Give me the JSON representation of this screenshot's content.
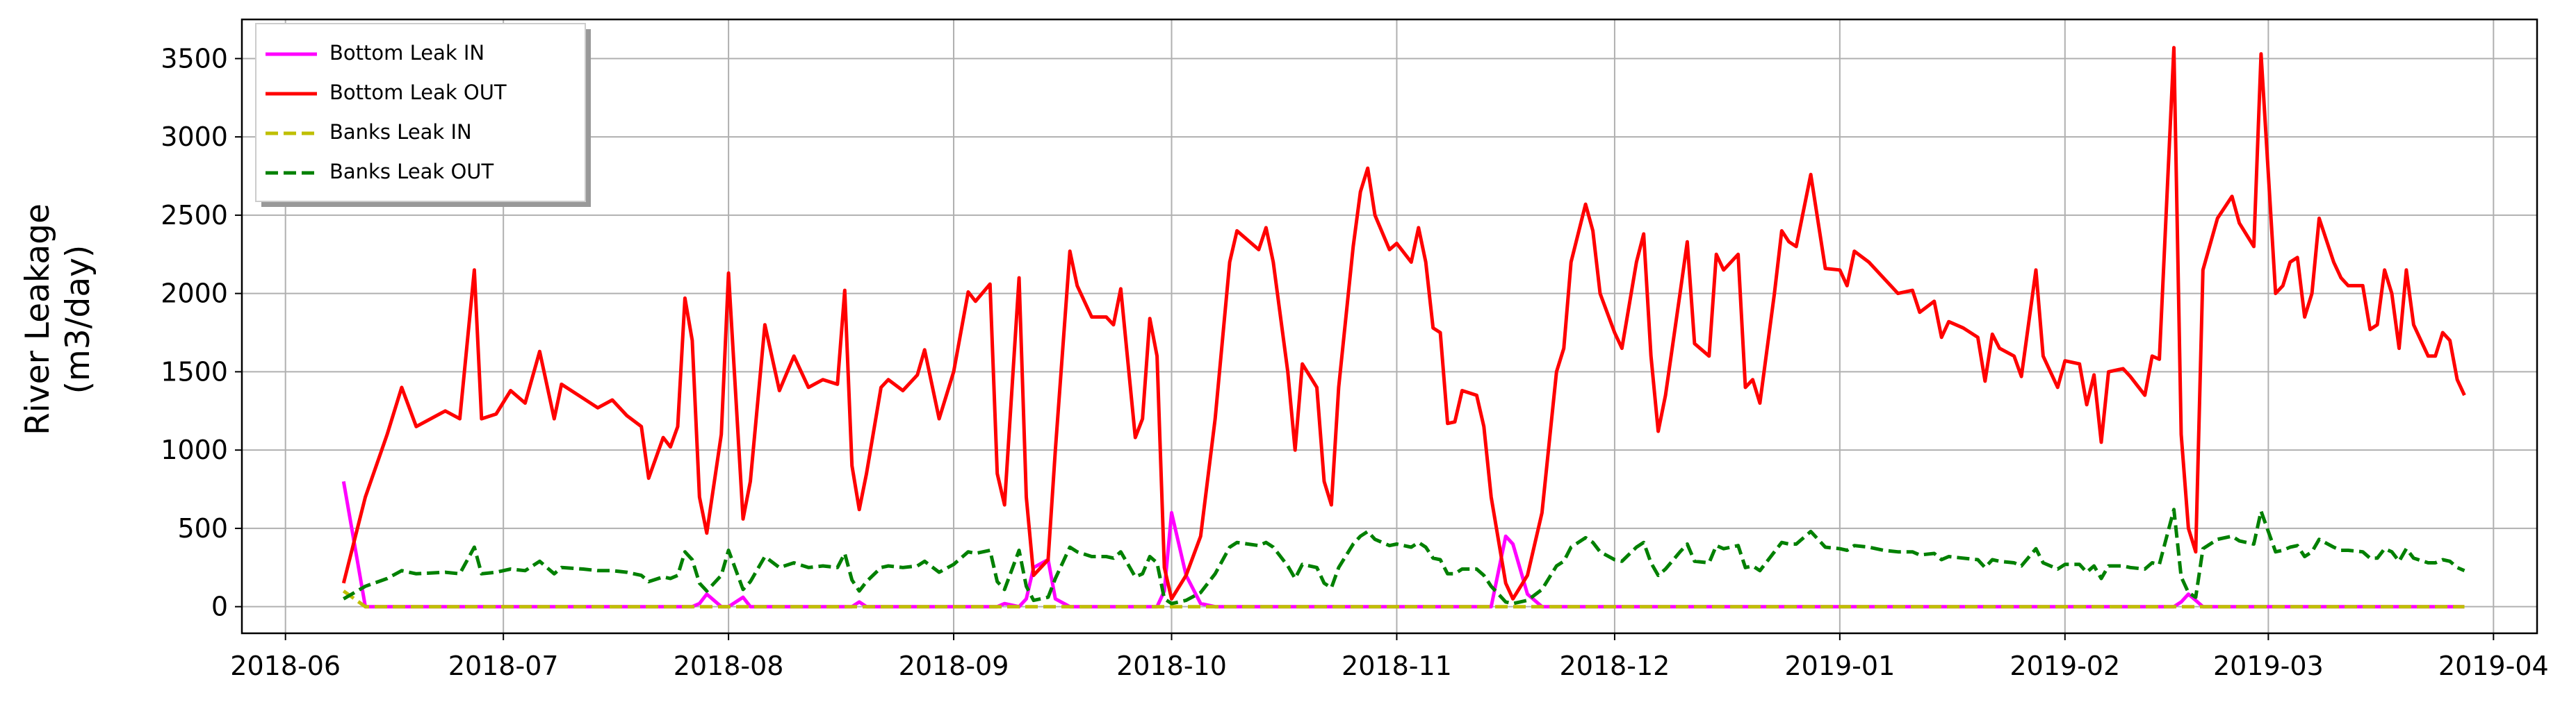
{
  "chart_data": {
    "type": "line",
    "ylabel": [
      "River Leakage",
      "(m3/day)"
    ],
    "x": [
      "2018-06-09",
      "2018-06-12",
      "2018-06-15",
      "2018-06-17",
      "2018-06-19",
      "2018-06-23",
      "2018-06-25",
      "2018-06-27",
      "2018-06-28",
      "2018-06-30",
      "2018-07-02",
      "2018-07-04",
      "2018-07-06",
      "2018-07-08",
      "2018-07-09",
      "2018-07-12",
      "2018-07-14",
      "2018-07-16",
      "2018-07-18",
      "2018-07-20",
      "2018-07-21",
      "2018-07-23",
      "2018-07-24",
      "2018-07-25",
      "2018-07-26",
      "2018-07-27",
      "2018-07-28",
      "2018-07-29",
      "2018-07-31",
      "2018-08-01",
      "2018-08-03",
      "2018-08-04",
      "2018-08-06",
      "2018-08-08",
      "2018-08-10",
      "2018-08-12",
      "2018-08-14",
      "2018-08-16",
      "2018-08-17",
      "2018-08-18",
      "2018-08-19",
      "2018-08-20",
      "2018-08-22",
      "2018-08-23",
      "2018-08-25",
      "2018-08-27",
      "2018-08-28",
      "2018-08-30",
      "2018-09-01",
      "2018-09-03",
      "2018-09-04",
      "2018-09-06",
      "2018-09-07",
      "2018-09-08",
      "2018-09-10",
      "2018-09-11",
      "2018-09-12",
      "2018-09-14",
      "2018-09-15",
      "2018-09-17",
      "2018-09-18",
      "2018-09-20",
      "2018-09-22",
      "2018-09-23",
      "2018-09-24",
      "2018-09-26",
      "2018-09-27",
      "2018-09-28",
      "2018-09-29",
      "2018-09-30",
      "2018-10-01",
      "2018-10-03",
      "2018-10-05",
      "2018-10-07",
      "2018-10-09",
      "2018-10-10",
      "2018-10-13",
      "2018-10-14",
      "2018-10-15",
      "2018-10-17",
      "2018-10-18",
      "2018-10-19",
      "2018-10-21",
      "2018-10-22",
      "2018-10-23",
      "2018-10-24",
      "2018-10-26",
      "2018-10-27",
      "2018-10-28",
      "2018-10-29",
      "2018-10-31",
      "2018-11-01",
      "2018-11-03",
      "2018-11-04",
      "2018-11-05",
      "2018-11-06",
      "2018-11-07",
      "2018-11-08",
      "2018-11-09",
      "2018-11-10",
      "2018-11-12",
      "2018-11-13",
      "2018-11-14",
      "2018-11-16",
      "2018-11-17",
      "2018-11-19",
      "2018-11-21",
      "2018-11-23",
      "2018-11-24",
      "2018-11-25",
      "2018-11-27",
      "2018-11-28",
      "2018-11-29",
      "2018-12-01",
      "2018-12-02",
      "2018-12-04",
      "2018-12-05",
      "2018-12-06",
      "2018-12-07",
      "2018-12-08",
      "2018-12-10",
      "2018-12-11",
      "2018-12-12",
      "2018-12-14",
      "2018-12-15",
      "2018-12-16",
      "2018-12-18",
      "2018-12-19",
      "2018-12-20",
      "2018-12-21",
      "2018-12-23",
      "2018-12-24",
      "2018-12-25",
      "2018-12-26",
      "2018-12-28",
      "2018-12-30",
      "2019-01-01",
      "2019-01-02",
      "2019-01-03",
      "2019-01-05",
      "2019-01-07",
      "2019-01-09",
      "2019-01-11",
      "2019-01-12",
      "2019-01-14",
      "2019-01-15",
      "2019-01-16",
      "2019-01-18",
      "2019-01-20",
      "2019-01-21",
      "2019-01-22",
      "2019-01-23",
      "2019-01-25",
      "2019-01-26",
      "2019-01-28",
      "2019-01-29",
      "2019-01-31",
      "2019-02-01",
      "2019-02-03",
      "2019-02-04",
      "2019-02-05",
      "2019-02-06",
      "2019-02-07",
      "2019-02-09",
      "2019-02-10",
      "2019-02-12",
      "2019-02-13",
      "2019-02-14",
      "2019-02-16",
      "2019-02-17",
      "2019-02-18",
      "2019-02-19",
      "2019-02-20",
      "2019-02-22",
      "2019-02-24",
      "2019-02-25",
      "2019-02-27",
      "2019-02-28",
      "2019-03-02",
      "2019-03-03",
      "2019-03-04",
      "2019-03-05",
      "2019-03-06",
      "2019-03-07",
      "2019-03-08",
      "2019-03-10",
      "2019-03-11",
      "2019-03-12",
      "2019-03-14",
      "2019-03-15",
      "2019-03-16",
      "2019-03-17",
      "2019-03-18",
      "2019-03-19",
      "2019-03-20",
      "2019-03-21",
      "2019-03-23",
      "2019-03-24",
      "2019-03-25",
      "2019-03-26",
      "2019-03-27",
      "2019-03-28"
    ],
    "series": [
      {
        "name": "Bottom Leak IN",
        "color": "#ff00ff",
        "linestyle": "solid",
        "values": [
          800,
          0,
          0,
          0,
          0,
          0,
          0,
          0,
          0,
          0,
          0,
          0,
          0,
          0,
          0,
          0,
          0,
          0,
          0,
          0,
          0,
          0,
          0,
          0,
          0,
          0,
          20,
          80,
          0,
          0,
          60,
          0,
          0,
          0,
          0,
          0,
          0,
          0,
          0,
          0,
          30,
          0,
          0,
          0,
          0,
          0,
          0,
          0,
          0,
          0,
          0,
          0,
          0,
          20,
          0,
          50,
          250,
          300,
          50,
          0,
          0,
          0,
          0,
          0,
          0,
          0,
          0,
          0,
          0,
          100,
          600,
          200,
          20,
          0,
          0,
          0,
          0,
          0,
          0,
          0,
          0,
          0,
          0,
          0,
          0,
          0,
          0,
          0,
          0,
          0,
          0,
          0,
          0,
          0,
          0,
          0,
          0,
          0,
          0,
          0,
          0,
          0,
          0,
          450,
          400,
          80,
          0,
          0,
          0,
          0,
          0,
          0,
          0,
          0,
          0,
          0,
          0,
          0,
          0,
          0,
          0,
          0,
          0,
          0,
          0,
          0,
          0,
          0,
          0,
          0,
          0,
          0,
          0,
          0,
          0,
          0,
          0,
          0,
          0,
          0,
          0,
          0,
          0,
          0,
          0,
          0,
          0,
          0,
          0,
          0,
          0,
          0,
          0,
          0,
          0,
          0,
          0,
          0,
          0,
          0,
          0,
          0,
          0,
          0,
          0,
          0,
          0,
          0,
          0,
          30,
          80,
          40,
          0,
          0,
          0,
          0,
          0,
          0,
          0,
          0,
          0,
          0,
          0,
          0,
          0,
          0,
          0,
          0,
          0,
          0,
          0,
          0,
          0,
          0,
          0,
          0,
          0,
          0,
          0,
          0,
          0,
          0
        ]
      },
      {
        "name": "Bottom Leak OUT",
        "color": "#ff0000",
        "linestyle": "solid",
        "values": [
          150,
          700,
          1100,
          1400,
          1150,
          1250,
          1200,
          2150,
          1200,
          1230,
          1380,
          1300,
          1630,
          1200,
          1420,
          1330,
          1270,
          1320,
          1220,
          1150,
          820,
          1080,
          1020,
          1150,
          1970,
          1700,
          700,
          470,
          1100,
          2130,
          560,
          800,
          1800,
          1380,
          1600,
          1400,
          1450,
          1420,
          2020,
          900,
          620,
          850,
          1400,
          1450,
          1380,
          1480,
          1640,
          1200,
          1500,
          2010,
          1950,
          2060,
          850,
          650,
          2100,
          700,
          200,
          300,
          1000,
          2270,
          2050,
          1850,
          1850,
          1800,
          2030,
          1080,
          1200,
          1840,
          1600,
          250,
          50,
          200,
          450,
          1200,
          2200,
          2400,
          2280,
          2420,
          2200,
          1500,
          1000,
          1550,
          1400,
          800,
          650,
          1400,
          2300,
          2650,
          2800,
          2500,
          2280,
          2320,
          2200,
          2420,
          2200,
          1780,
          1750,
          1170,
          1180,
          1380,
          1350,
          1150,
          700,
          150,
          50,
          200,
          600,
          1500,
          1650,
          2200,
          2570,
          2400,
          2000,
          1750,
          1650,
          2200,
          2380,
          1600,
          1120,
          1350,
          2000,
          2330,
          1680,
          1600,
          2250,
          2150,
          2250,
          1400,
          1450,
          1300,
          2000,
          2400,
          2330,
          2300,
          2760,
          2160,
          2150,
          2050,
          2270,
          2200,
          2100,
          2000,
          2020,
          1880,
          1950,
          1720,
          1820,
          1780,
          1720,
          1440,
          1740,
          1650,
          1600,
          1470,
          2150,
          1600,
          1400,
          1570,
          1550,
          1290,
          1480,
          1050,
          1500,
          1520,
          1470,
          1350,
          1600,
          1580,
          3570,
          1100,
          500,
          350,
          2150,
          2480,
          2620,
          2450,
          2300,
          3530,
          2000,
          2050,
          2200,
          2230,
          1850,
          2000,
          2480,
          2200,
          2100,
          2050,
          2050,
          1770,
          1800,
          2150,
          2000,
          1650,
          2150,
          1800,
          1600,
          1600,
          1750,
          1700,
          1450,
          1350
        ]
      },
      {
        "name": "Banks Leak IN",
        "color": "#bfbf00",
        "linestyle": "dashed",
        "values": [
          100,
          0,
          0,
          0,
          0,
          0,
          0,
          0,
          0,
          0,
          0,
          0,
          0,
          0,
          0,
          0,
          0,
          0,
          0,
          0,
          0,
          0,
          0,
          0,
          0,
          0,
          0,
          0,
          0,
          0,
          0,
          0,
          0,
          0,
          0,
          0,
          0,
          0,
          0,
          0,
          0,
          0,
          0,
          0,
          0,
          0,
          0,
          0,
          0,
          0,
          0,
          0,
          0,
          0,
          0,
          0,
          0,
          0,
          0,
          0,
          0,
          0,
          0,
          0,
          0,
          0,
          0,
          0,
          0,
          0,
          0,
          0,
          0,
          0,
          0,
          0,
          0,
          0,
          0,
          0,
          0,
          0,
          0,
          0,
          0,
          0,
          0,
          0,
          0,
          0,
          0,
          0,
          0,
          0,
          0,
          0,
          0,
          0,
          0,
          0,
          0,
          0,
          0,
          0,
          0,
          0,
          0,
          0,
          0,
          0,
          0,
          0,
          0,
          0,
          0,
          0,
          0,
          0,
          0,
          0,
          0,
          0,
          0,
          0,
          0,
          0,
          0,
          0,
          0,
          0,
          0,
          0,
          0,
          0,
          0,
          0,
          0,
          0,
          0,
          0,
          0,
          0,
          0,
          0,
          0,
          0,
          0,
          0,
          0,
          0,
          0,
          0,
          0,
          0,
          0,
          0,
          0,
          0,
          0,
          0,
          0,
          0,
          0,
          0,
          0,
          0,
          0,
          0,
          0,
          0,
          0,
          0,
          0,
          0,
          0,
          0,
          0,
          0,
          0,
          0,
          0,
          0,
          0,
          0,
          0,
          0,
          0,
          0,
          0,
          0,
          0,
          0,
          0,
          0,
          0,
          0,
          0,
          0,
          0,
          0,
          0,
          0
        ]
      },
      {
        "name": "Banks Leak OUT",
        "color": "#008000",
        "linestyle": "dashed",
        "values": [
          50,
          130,
          180,
          230,
          210,
          220,
          210,
          380,
          210,
          220,
          240,
          230,
          290,
          210,
          250,
          240,
          230,
          230,
          220,
          200,
          160,
          190,
          180,
          200,
          350,
          300,
          150,
          100,
          200,
          360,
          110,
          160,
          320,
          250,
          280,
          250,
          260,
          250,
          340,
          170,
          100,
          160,
          250,
          260,
          250,
          260,
          290,
          220,
          270,
          350,
          340,
          360,
          160,
          110,
          360,
          130,
          40,
          60,
          180,
          380,
          350,
          320,
          320,
          310,
          350,
          190,
          210,
          320,
          280,
          50,
          20,
          40,
          90,
          210,
          380,
          410,
          390,
          410,
          380,
          260,
          180,
          270,
          250,
          150,
          120,
          250,
          400,
          450,
          480,
          430,
          390,
          400,
          380,
          410,
          380,
          310,
          300,
          210,
          210,
          240,
          240,
          200,
          130,
          30,
          20,
          40,
          110,
          260,
          290,
          380,
          440,
          410,
          350,
          300,
          290,
          380,
          410,
          280,
          200,
          240,
          350,
          400,
          290,
          280,
          390,
          370,
          390,
          250,
          260,
          230,
          350,
          410,
          400,
          400,
          480,
          380,
          370,
          360,
          390,
          380,
          360,
          350,
          350,
          330,
          340,
          300,
          320,
          310,
          300,
          250,
          300,
          290,
          280,
          260,
          370,
          280,
          240,
          270,
          270,
          220,
          260,
          180,
          260,
          260,
          250,
          240,
          280,
          270,
          620,
          190,
          90,
          60,
          370,
          430,
          450,
          420,
          400,
          610,
          350,
          360,
          380,
          390,
          320,
          350,
          430,
          380,
          360,
          360,
          350,
          310,
          310,
          370,
          350,
          290,
          370,
          310,
          280,
          280,
          300,
          290,
          250,
          230
        ]
      }
    ],
    "xlim": [
      "2018-05-26",
      "2019-04-07"
    ],
    "xticks": [
      "2018-06",
      "2018-07",
      "2018-08",
      "2018-09",
      "2018-10",
      "2018-11",
      "2018-12",
      "2019-01",
      "2019-02",
      "2019-03",
      "2019-04"
    ],
    "ylim": [
      -170,
      3750
    ],
    "yticks": [
      0,
      500,
      1000,
      1500,
      2000,
      2500,
      3000,
      3500
    ],
    "grid": true,
    "legend": "upper left"
  }
}
